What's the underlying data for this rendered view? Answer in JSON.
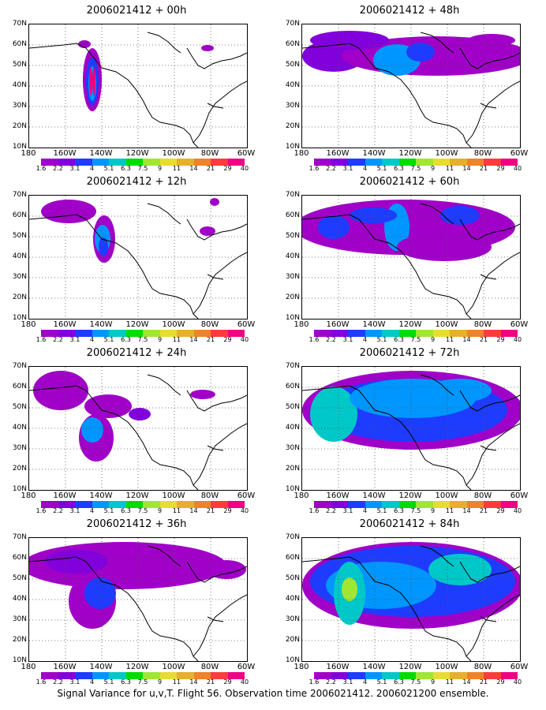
{
  "panels": [
    {
      "title": "2006021412 + 00h"
    },
    {
      "title": "2006021412 + 48h"
    },
    {
      "title": "2006021412 + 12h"
    },
    {
      "title": "2006021412 + 60h"
    },
    {
      "title": "2006021412 + 24h"
    },
    {
      "title": "2006021412 + 72h"
    },
    {
      "title": "2006021412 + 36h"
    },
    {
      "title": "2006021412 + 84h"
    }
  ],
  "lat_labels": [
    "70N",
    "60N",
    "50N",
    "40N",
    "30N",
    "20N",
    "10N"
  ],
  "lon_labels": [
    "180",
    "160W",
    "140W",
    "120W",
    "100W",
    "80W",
    "60W"
  ],
  "colorbar": {
    "labels": [
      "1.6",
      "2.2",
      "3.1",
      "4",
      "5.1",
      "6.3",
      "7.5",
      "9",
      "11",
      "14",
      "21",
      "29",
      "40"
    ],
    "colors": [
      "#a000c8",
      "#8200dc",
      "#1e3cff",
      "#0096ff",
      "#00c8c8",
      "#00dc00",
      "#a0e632",
      "#e6dc32",
      "#e6af2d",
      "#f08228",
      "#fa3c3c",
      "#f00082"
    ]
  },
  "footer": "Signal Variance for u,v,T. Flight 56. Observation time 2006021412. 2006021200 ensemble."
}
